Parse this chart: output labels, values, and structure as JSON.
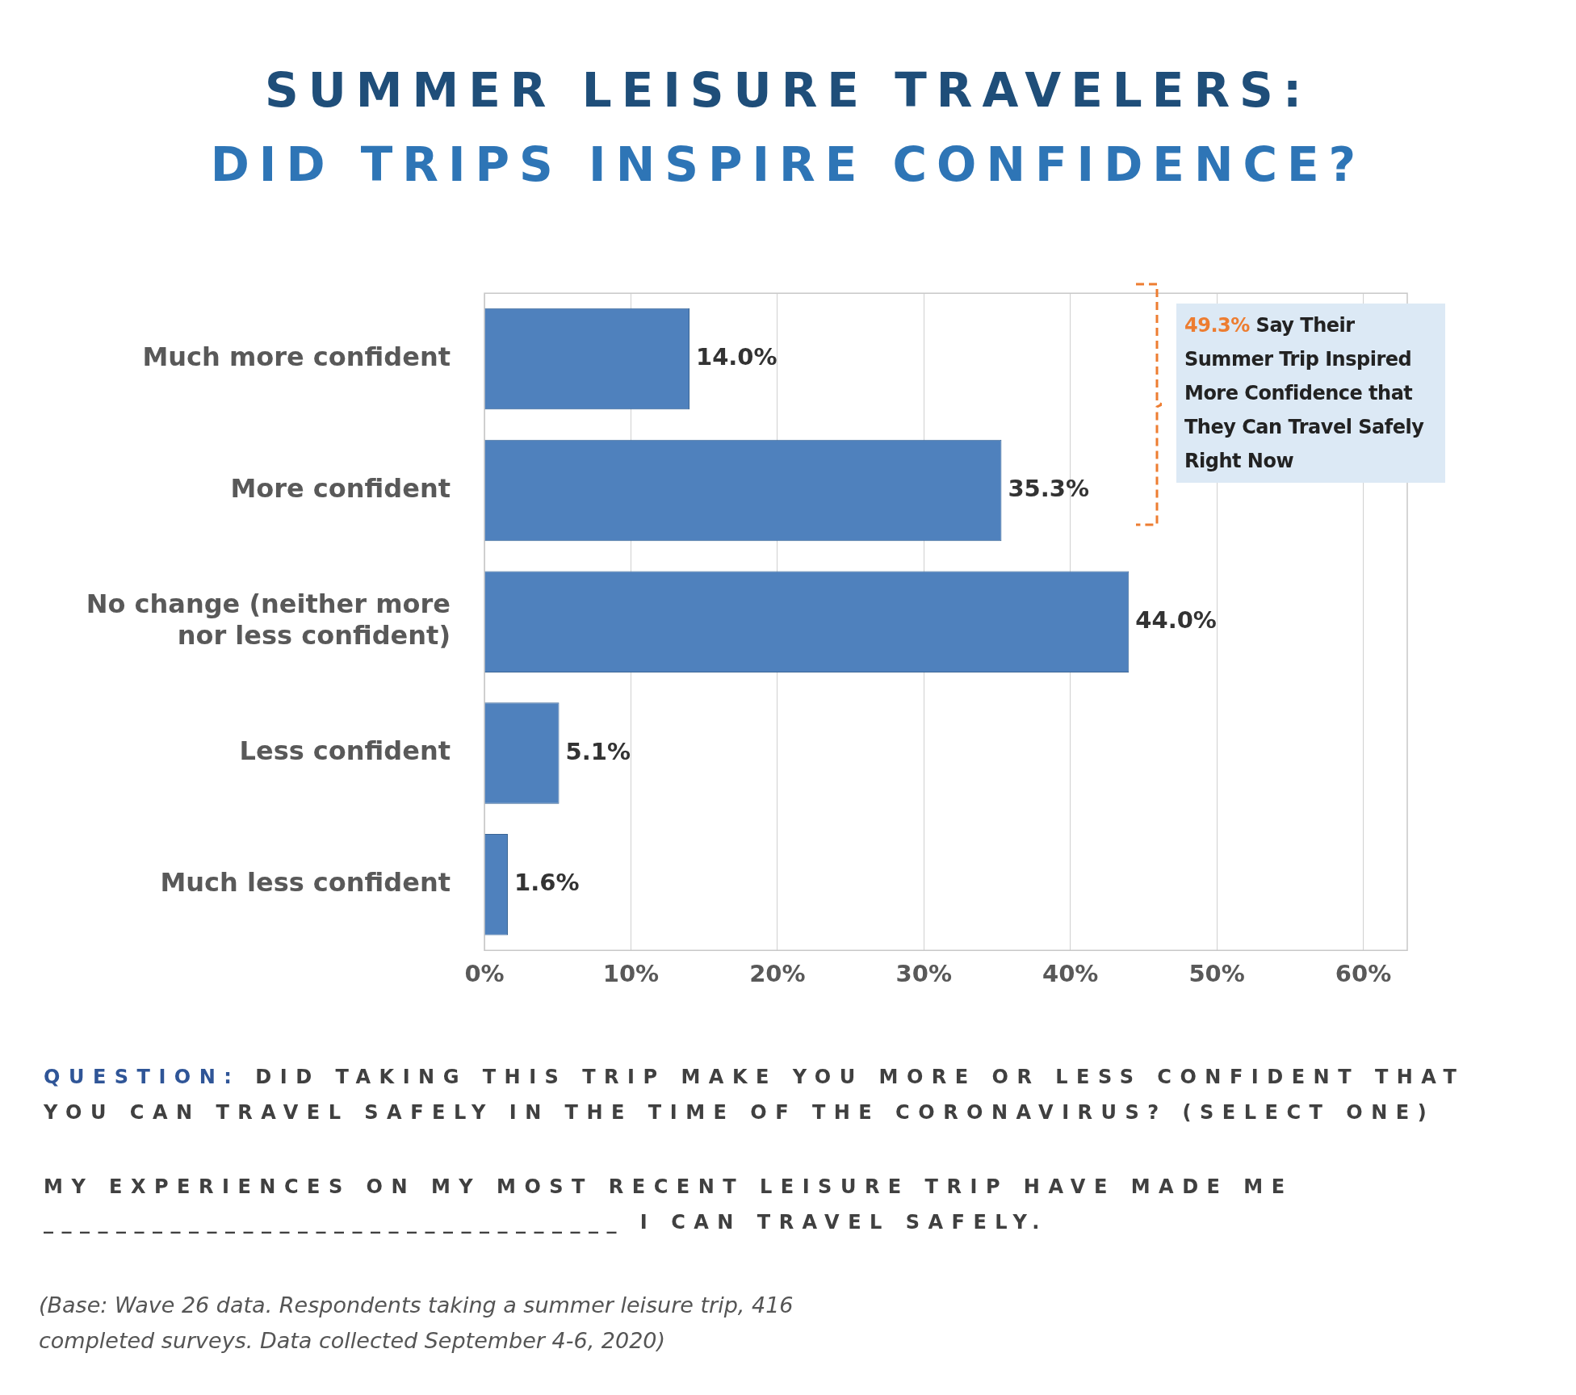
{
  "chart_data": {
    "type": "bar",
    "orientation": "horizontal",
    "title": "SUMMER LEISURE TRAVELERS:",
    "subtitle": "DID TRIPS INSPIRE CONFIDENCE?",
    "categories": [
      "Much more confident",
      "More confident",
      "No change (neither more nor less confident)",
      "Less confident",
      "Much less confident"
    ],
    "values": [
      14.0,
      35.3,
      44.0,
      5.1,
      1.6
    ],
    "value_labels": [
      "14.0%",
      "35.3%",
      "44.0%",
      "5.1%",
      "1.6%"
    ],
    "color": "#4f81bd",
    "xlim": [
      0,
      63
    ],
    "xticks": [
      {
        "value": 0,
        "label": "0%"
      },
      {
        "value": 10,
        "label": "10%"
      },
      {
        "value": 20,
        "label": "20%"
      },
      {
        "value": 30,
        "label": "30%"
      },
      {
        "value": 40,
        "label": "40%"
      },
      {
        "value": 50,
        "label": "50%"
      },
      {
        "value": 60,
        "label": "60%"
      }
    ],
    "grid": "x",
    "annotations": [
      "49.3% Say Their Summer Trip Inspired More Confidence that They Can Travel Safely Right Now",
      "QUESTION: DID TAKING THIS TRIP MAKE YOU MORE OR LESS CONFIDENT THAT YOU CAN TRAVEL SAFELY IN THE TIME OF THE CORONAVIRUS? (SELECT ONE)",
      "MY EXPERIENCES ON MY MOST RECENT LEISURE TRIP HAVE MADE ME ________________________________ I CAN TRAVEL SAFELY.",
      "(Base: Wave 26 data. Respondents taking a summer leisure trip, 416 completed surveys. Data collected September 4-6, 2020)"
    ]
  }
}
